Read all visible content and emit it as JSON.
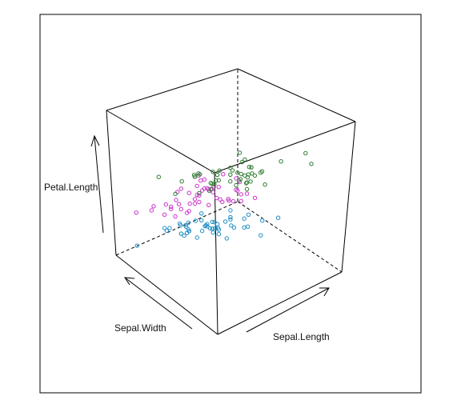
{
  "chart_data": {
    "type": "scatter",
    "projection": "3d-box",
    "axes": {
      "x": {
        "label": "Sepal.Length",
        "range": [
          4.3,
          7.9
        ]
      },
      "y": {
        "label": "Sepal.Width",
        "range": [
          2.0,
          4.4
        ]
      },
      "z": {
        "label": "Petal.Length",
        "range": [
          1.0,
          6.9
        ]
      }
    },
    "grid": false,
    "legend": "none",
    "series": [
      {
        "color": "#1f8fc4",
        "points": [
          [
            5.1,
            3.5,
            1.4
          ],
          [
            4.9,
            3.0,
            1.4
          ],
          [
            4.7,
            3.2,
            1.3
          ],
          [
            4.6,
            3.1,
            1.5
          ],
          [
            5.0,
            3.6,
            1.4
          ],
          [
            5.4,
            3.9,
            1.7
          ],
          [
            4.6,
            3.4,
            1.4
          ],
          [
            5.0,
            3.4,
            1.5
          ],
          [
            4.4,
            2.9,
            1.4
          ],
          [
            4.9,
            3.1,
            1.5
          ],
          [
            5.4,
            3.7,
            1.5
          ],
          [
            4.8,
            3.4,
            1.6
          ],
          [
            4.8,
            3.0,
            1.4
          ],
          [
            4.3,
            3.0,
            1.1
          ],
          [
            5.8,
            4.0,
            1.2
          ],
          [
            5.7,
            4.4,
            1.5
          ],
          [
            5.4,
            3.9,
            1.3
          ],
          [
            5.1,
            3.5,
            1.4
          ],
          [
            5.7,
            3.8,
            1.7
          ],
          [
            5.1,
            3.8,
            1.5
          ],
          [
            5.4,
            3.4,
            1.7
          ],
          [
            5.1,
            3.7,
            1.5
          ],
          [
            4.6,
            3.6,
            1.0
          ],
          [
            5.1,
            3.3,
            1.7
          ],
          [
            4.8,
            3.4,
            1.9
          ],
          [
            5.0,
            3.0,
            1.6
          ],
          [
            5.0,
            3.4,
            1.6
          ],
          [
            5.2,
            3.5,
            1.5
          ],
          [
            5.2,
            3.4,
            1.4
          ],
          [
            4.7,
            3.2,
            1.6
          ],
          [
            4.8,
            3.1,
            1.6
          ],
          [
            5.4,
            3.4,
            1.5
          ],
          [
            5.2,
            4.1,
            1.5
          ],
          [
            5.5,
            4.2,
            1.4
          ],
          [
            4.9,
            3.1,
            1.5
          ],
          [
            5.0,
            3.2,
            1.2
          ],
          [
            5.5,
            3.5,
            1.3
          ],
          [
            4.9,
            3.6,
            1.4
          ],
          [
            4.4,
            3.0,
            1.3
          ],
          [
            5.1,
            3.4,
            1.5
          ],
          [
            5.0,
            3.5,
            1.3
          ],
          [
            4.5,
            2.3,
            1.3
          ],
          [
            4.4,
            3.2,
            1.3
          ],
          [
            5.0,
            3.5,
            1.6
          ],
          [
            5.1,
            3.8,
            1.9
          ],
          [
            4.8,
            3.0,
            1.4
          ],
          [
            5.1,
            3.8,
            1.6
          ],
          [
            4.6,
            3.2,
            1.4
          ],
          [
            5.3,
            3.7,
            1.5
          ],
          [
            5.0,
            3.3,
            1.4
          ]
        ]
      },
      {
        "color": "#cc33cc",
        "points": [
          [
            7.0,
            3.2,
            4.7
          ],
          [
            6.4,
            3.2,
            4.5
          ],
          [
            6.9,
            3.1,
            4.9
          ],
          [
            5.5,
            2.3,
            4.0
          ],
          [
            6.5,
            2.8,
            4.6
          ],
          [
            5.7,
            2.8,
            4.5
          ],
          [
            6.3,
            3.3,
            4.7
          ],
          [
            4.9,
            2.4,
            3.3
          ],
          [
            6.6,
            2.9,
            4.6
          ],
          [
            5.2,
            2.7,
            3.9
          ],
          [
            5.0,
            2.0,
            3.5
          ],
          [
            5.9,
            3.0,
            4.2
          ],
          [
            6.0,
            2.2,
            4.0
          ],
          [
            6.1,
            2.9,
            4.7
          ],
          [
            5.6,
            2.9,
            3.6
          ],
          [
            6.7,
            3.1,
            4.4
          ],
          [
            5.6,
            3.0,
            4.5
          ],
          [
            5.8,
            2.7,
            4.1
          ],
          [
            6.2,
            2.2,
            4.5
          ],
          [
            5.6,
            2.5,
            3.9
          ],
          [
            5.9,
            3.2,
            4.8
          ],
          [
            6.1,
            2.8,
            4.0
          ],
          [
            6.3,
            2.5,
            4.9
          ],
          [
            6.1,
            2.8,
            4.7
          ],
          [
            6.4,
            2.9,
            4.3
          ],
          [
            6.6,
            3.0,
            4.4
          ],
          [
            6.8,
            2.8,
            4.8
          ],
          [
            6.7,
            3.0,
            5.0
          ],
          [
            6.0,
            2.9,
            4.5
          ],
          [
            5.7,
            2.6,
            3.5
          ],
          [
            5.5,
            2.4,
            3.8
          ],
          [
            5.5,
            2.4,
            3.7
          ],
          [
            5.8,
            2.7,
            3.9
          ],
          [
            6.0,
            2.7,
            5.1
          ],
          [
            5.4,
            3.0,
            4.5
          ],
          [
            6.0,
            3.4,
            4.5
          ],
          [
            6.7,
            3.1,
            4.7
          ],
          [
            6.3,
            2.3,
            4.4
          ],
          [
            5.6,
            3.0,
            4.1
          ],
          [
            5.5,
            2.5,
            4.0
          ],
          [
            5.5,
            2.6,
            4.4
          ],
          [
            6.1,
            3.0,
            4.6
          ],
          [
            5.8,
            2.6,
            4.0
          ],
          [
            5.0,
            2.3,
            3.3
          ],
          [
            5.6,
            2.7,
            4.2
          ],
          [
            5.7,
            3.0,
            4.2
          ],
          [
            5.7,
            2.9,
            4.2
          ],
          [
            6.2,
            2.9,
            4.3
          ],
          [
            5.1,
            2.5,
            3.0
          ],
          [
            5.7,
            2.8,
            4.1
          ]
        ]
      },
      {
        "color": "#2e7d32",
        "points": [
          [
            6.3,
            3.3,
            6.0
          ],
          [
            5.8,
            2.7,
            5.1
          ],
          [
            7.1,
            3.0,
            5.9
          ],
          [
            6.3,
            2.9,
            5.6
          ],
          [
            6.5,
            3.0,
            5.8
          ],
          [
            7.6,
            3.0,
            6.6
          ],
          [
            4.9,
            2.5,
            4.5
          ],
          [
            7.3,
            2.9,
            6.3
          ],
          [
            6.7,
            2.5,
            5.8
          ],
          [
            7.2,
            3.6,
            6.1
          ],
          [
            6.5,
            3.2,
            5.1
          ],
          [
            6.4,
            2.7,
            5.3
          ],
          [
            6.8,
            3.0,
            5.5
          ],
          [
            5.7,
            2.5,
            5.0
          ],
          [
            5.8,
            2.8,
            5.1
          ],
          [
            6.4,
            3.2,
            5.3
          ],
          [
            6.5,
            3.0,
            5.5
          ],
          [
            7.7,
            3.8,
            6.7
          ],
          [
            7.7,
            2.6,
            6.9
          ],
          [
            6.0,
            2.2,
            5.0
          ],
          [
            6.9,
            3.2,
            5.7
          ],
          [
            5.6,
            2.8,
            4.9
          ],
          [
            7.7,
            2.8,
            6.7
          ],
          [
            6.3,
            2.7,
            4.9
          ],
          [
            6.7,
            3.3,
            5.7
          ],
          [
            7.2,
            3.2,
            6.0
          ],
          [
            6.2,
            2.8,
            4.8
          ],
          [
            6.1,
            3.0,
            4.9
          ],
          [
            6.4,
            2.8,
            5.6
          ],
          [
            7.2,
            3.0,
            5.8
          ],
          [
            7.4,
            2.8,
            6.1
          ],
          [
            7.9,
            3.8,
            6.4
          ],
          [
            6.4,
            2.8,
            5.6
          ],
          [
            6.3,
            2.8,
            5.1
          ],
          [
            6.1,
            2.6,
            5.6
          ],
          [
            7.7,
            3.0,
            6.1
          ],
          [
            6.3,
            3.4,
            5.6
          ],
          [
            6.4,
            3.1,
            5.5
          ],
          [
            6.0,
            3.0,
            4.8
          ],
          [
            6.9,
            3.1,
            5.4
          ],
          [
            6.7,
            3.1,
            5.6
          ],
          [
            6.9,
            3.1,
            5.1
          ],
          [
            5.8,
            2.7,
            5.1
          ],
          [
            6.8,
            3.2,
            5.9
          ],
          [
            6.7,
            3.3,
            5.7
          ],
          [
            6.7,
            3.0,
            5.2
          ],
          [
            6.3,
            2.5,
            5.0
          ],
          [
            6.5,
            3.0,
            5.2
          ],
          [
            6.2,
            3.4,
            5.4
          ],
          [
            5.9,
            3.0,
            5.1
          ]
        ]
      }
    ]
  }
}
